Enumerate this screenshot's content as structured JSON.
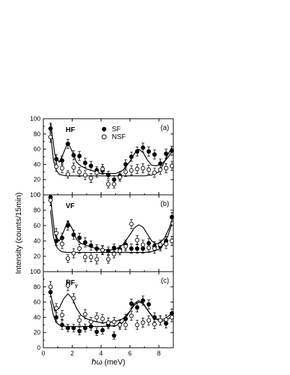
{
  "chart_data": [
    {
      "type": "scatter",
      "panel_tag": "(a)",
      "field_label": "HF",
      "field_label_sub": "",
      "legend": {
        "placement": "top-center",
        "entries": [
          "SF",
          "NSF"
        ]
      },
      "xlim": [
        0,
        9
      ],
      "ylim": [
        0,
        100
      ],
      "yticks": [
        0,
        20,
        40,
        60,
        80,
        100
      ],
      "series": [
        {
          "name": "SF",
          "marker": "filled-circle",
          "x": [
            0.5,
            0.9,
            1.3,
            1.7,
            2.1,
            2.5,
            2.9,
            3.3,
            3.7,
            4.1,
            4.5,
            4.9,
            5.3,
            5.7,
            6.1,
            6.5,
            6.9,
            7.3,
            7.7,
            8.1,
            8.5,
            8.9
          ],
          "y": [
            87,
            47,
            45,
            67,
            52,
            51,
            42,
            38,
            32,
            32,
            26,
            20,
            25,
            40,
            50,
            57,
            62,
            57,
            53,
            41,
            54,
            58
          ],
          "err": [
            6,
            6,
            6,
            6,
            6,
            6,
            6,
            6,
            5,
            5,
            5,
            5,
            5,
            6,
            6,
            6,
            6,
            6,
            6,
            6,
            6,
            6
          ]
        },
        {
          "name": "NSF",
          "marker": "open-circle",
          "x": [
            0.5,
            0.9,
            1.3,
            1.7,
            2.1,
            2.5,
            2.9,
            3.3,
            3.7,
            4.1,
            4.5,
            4.9,
            5.3,
            5.7,
            6.1,
            6.5,
            6.9,
            7.3,
            7.7,
            8.1,
            8.5,
            8.9
          ],
          "y": [
            76,
            37,
            35,
            27,
            36,
            30,
            26,
            22,
            29,
            34,
            14,
            14,
            23,
            30,
            32,
            34,
            35,
            33,
            29,
            33,
            35,
            38
          ],
          "err": [
            7,
            6,
            6,
            5,
            6,
            6,
            6,
            6,
            6,
            6,
            5,
            5,
            5,
            6,
            6,
            6,
            6,
            6,
            6,
            6,
            6,
            6
          ]
        }
      ],
      "fit_lines": [
        {
          "x": [
            0.5,
            0.8,
            1.1,
            1.4,
            1.7,
            2.0,
            2.3,
            2.6,
            3.0,
            3.5,
            4.0,
            4.5,
            5.0,
            5.5,
            6.0,
            6.3,
            6.6,
            6.9,
            7.2,
            7.5,
            7.8,
            8.1,
            8.4,
            8.7,
            9.0
          ],
          "y": [
            95,
            53,
            43,
            55,
            69,
            57,
            43,
            38,
            34,
            31,
            28,
            28,
            28,
            32,
            44,
            54,
            60,
            56,
            46,
            39,
            38,
            40,
            44,
            51,
            60
          ]
        },
        {
          "x": [
            0.5,
            0.7,
            0.9,
            1.1,
            1.3,
            1.6,
            2.0,
            3.0,
            4.0,
            5.0,
            6.0,
            7.0,
            7.5,
            8.0,
            8.3,
            8.6,
            8.9
          ],
          "y": [
            80,
            45,
            32,
            27,
            26,
            25,
            25,
            25,
            25,
            25,
            25,
            25,
            26,
            30,
            40,
            52,
            62
          ]
        }
      ]
    },
    {
      "type": "scatter",
      "panel_tag": "(b)",
      "field_label": "VF",
      "field_label_sub": "",
      "xlim": [
        0,
        9
      ],
      "ylim": [
        0,
        100
      ],
      "yticks": [
        0,
        20,
        40,
        60,
        80,
        100
      ],
      "series": [
        {
          "name": "SF",
          "marker": "filled-circle",
          "x": [
            0.5,
            0.9,
            1.3,
            1.7,
            2.1,
            2.5,
            2.9,
            3.3,
            3.7,
            4.1,
            4.5,
            4.9,
            5.3,
            5.7,
            6.1,
            6.5,
            6.9,
            7.3,
            7.7,
            8.1,
            8.5,
            8.9
          ],
          "y": [
            97,
            40,
            44,
            60,
            48,
            44,
            38,
            34,
            30,
            28,
            27,
            31,
            29,
            35,
            30,
            30,
            30,
            37,
            33,
            33,
            40,
            71
          ],
          "err": [
            6,
            6,
            6,
            6,
            6,
            6,
            6,
            6,
            5,
            5,
            5,
            5,
            5,
            6,
            6,
            6,
            6,
            6,
            6,
            6,
            6,
            6
          ]
        },
        {
          "name": "NSF",
          "marker": "open-circle",
          "x": [
            0.5,
            0.9,
            1.3,
            1.7,
            2.1,
            2.5,
            2.9,
            3.3,
            3.7,
            4.1,
            4.5,
            4.9,
            5.3,
            5.7,
            6.1,
            6.5,
            6.9,
            7.3,
            7.7,
            8.1,
            8.5,
            8.9
          ],
          "y": [
            93,
            50,
            36,
            17,
            24,
            30,
            19,
            19,
            16,
            28,
            16,
            23,
            27,
            33,
            62,
            41,
            35,
            31,
            30,
            35,
            36,
            40
          ],
          "err": [
            7,
            6,
            6,
            5,
            6,
            6,
            6,
            6,
            6,
            6,
            5,
            5,
            5,
            6,
            6,
            6,
            6,
            6,
            6,
            6,
            6,
            6
          ]
        }
      ],
      "fit_lines": [
        {
          "x": [
            0.5,
            0.8,
            1.1,
            1.4,
            1.7,
            2.0,
            2.3,
            2.6,
            3.0,
            3.5,
            4.0,
            4.5,
            5.0,
            5.5,
            6.0,
            6.3,
            6.6,
            6.9,
            7.2,
            7.5,
            7.8,
            8.1,
            8.4,
            8.7,
            9.0
          ],
          "y": [
            96,
            48,
            40,
            52,
            66,
            56,
            42,
            37,
            34,
            31,
            29,
            28,
            29,
            35,
            48,
            57,
            61,
            58,
            49,
            40,
            36,
            38,
            44,
            56,
            72
          ]
        },
        {
          "x": [
            0.5,
            0.7,
            0.9,
            1.1,
            1.3,
            1.6,
            2.0,
            3.0,
            4.0,
            5.0,
            6.0,
            7.0,
            7.5,
            8.0,
            8.3,
            8.6,
            8.9
          ],
          "y": [
            80,
            45,
            33,
            28,
            26,
            25,
            25,
            25,
            25,
            25,
            25,
            25,
            26,
            29,
            35,
            45,
            62
          ]
        }
      ]
    },
    {
      "type": "scatter",
      "panel_tag": "(c)",
      "field_label": "HF",
      "field_label_sub": "y",
      "xlim": [
        0,
        9
      ],
      "ylim": [
        0,
        100
      ],
      "yticks": [
        0,
        20,
        40,
        60,
        80,
        100
      ],
      "xticks": [
        0,
        2,
        4,
        6,
        8
      ],
      "xlabel": "ℏω (meV)",
      "series": [
        {
          "name": "SF",
          "marker": "filled-circle",
          "x": [
            0.5,
            0.9,
            1.3,
            1.7,
            2.1,
            2.5,
            2.9,
            3.3,
            3.7,
            4.1,
            4.5,
            4.9,
            5.3,
            5.7,
            6.1,
            6.5,
            6.9,
            7.3,
            7.7,
            8.1,
            8.5,
            8.9
          ],
          "y": [
            73,
            40,
            30,
            26,
            26,
            22,
            26,
            28,
            21,
            23,
            30,
            16,
            31,
            38,
            58,
            53,
            62,
            57,
            40,
            36,
            32,
            45
          ],
          "err": [
            6,
            6,
            6,
            5,
            5,
            5,
            5,
            5,
            5,
            5,
            5,
            5,
            5,
            6,
            6,
            6,
            6,
            6,
            6,
            6,
            6,
            6
          ]
        },
        {
          "name": "NSF",
          "marker": "open-circle",
          "x": [
            0.5,
            0.9,
            1.3,
            1.7,
            2.1,
            2.5,
            2.9,
            3.3,
            3.7,
            4.1,
            4.5,
            4.9,
            5.3,
            5.7,
            6.1,
            6.5,
            6.9,
            7.3,
            7.7,
            8.1,
            8.5,
            8.9
          ],
          "y": [
            80,
            52,
            43,
            82,
            65,
            36,
            44,
            34,
            40,
            38,
            33,
            34,
            30,
            30,
            42,
            30,
            33,
            36,
            31,
            36,
            37,
            40
          ],
          "err": [
            7,
            6,
            6,
            7,
            6,
            6,
            6,
            6,
            6,
            6,
            6,
            6,
            6,
            6,
            6,
            6,
            6,
            6,
            6,
            6,
            6,
            6
          ]
        }
      ],
      "fit_lines": [
        {
          "x": [
            0.5,
            0.8,
            1.1,
            1.4,
            1.7,
            2.0,
            2.3,
            2.6,
            3.0,
            3.5,
            4.0,
            4.5,
            5.0,
            5.5,
            6.0,
            6.3,
            6.6,
            6.9,
            7.2,
            7.5,
            7.8,
            8.1,
            8.4,
            8.7,
            9.0
          ],
          "y": [
            70,
            48,
            52,
            64,
            71,
            65,
            52,
            43,
            38,
            35,
            33,
            33,
            35,
            38,
            48,
            56,
            60,
            58,
            50,
            42,
            38,
            37,
            38,
            42,
            48
          ]
        },
        {
          "x": [
            0.5,
            0.7,
            0.9,
            1.1,
            1.3,
            1.6,
            2.0,
            3.0,
            4.0,
            5.0,
            5.5,
            6.0,
            6.3,
            6.6,
            6.9,
            7.2,
            7.6,
            8.0,
            8.4,
            8.8,
            9.0
          ],
          "y": [
            62,
            42,
            33,
            30,
            29,
            28,
            28,
            28,
            28,
            29,
            33,
            48,
            58,
            62,
            59,
            50,
            40,
            36,
            35,
            40,
            46
          ]
        }
      ]
    }
  ],
  "shared": {
    "ylabel": "Intensity (counts/15min)"
  }
}
